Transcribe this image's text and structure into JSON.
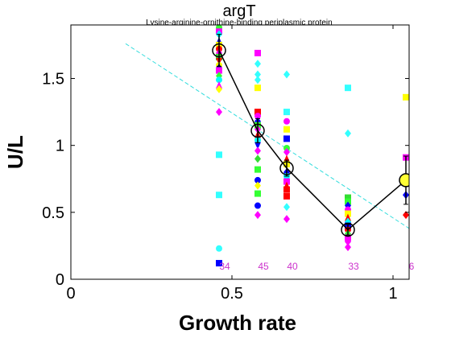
{
  "chart_data": {
    "type": "scatter",
    "title": "argT",
    "subtitle": "Lysine-arginine-ornithine-binding periplasmic protein",
    "xlabel": "Growth rate",
    "ylabel": "U/L",
    "xlim": [
      0,
      1.05
    ],
    "ylim": [
      0,
      1.9
    ],
    "xticks": [
      0,
      0.5,
      1
    ],
    "xtick_labels": [
      "0",
      "0.5",
      "1"
    ],
    "yticks": [
      0,
      0.5,
      1,
      1.5
    ],
    "ytick_labels": [
      "0",
      "0.5",
      "1",
      "1.5"
    ],
    "grid": false,
    "legend": "none",
    "counts": [
      {
        "x": 0.46,
        "label": "34"
      },
      {
        "x": 0.58,
        "label": "45"
      },
      {
        "x": 0.67,
        "label": "40"
      },
      {
        "x": 0.86,
        "label": "33"
      },
      {
        "x": 1.04,
        "label": "6"
      }
    ],
    "mean_line": {
      "x": [
        0.46,
        0.58,
        0.67,
        0.86,
        1.04
      ],
      "y": [
        1.71,
        1.11,
        0.83,
        0.37,
        0.74
      ],
      "error": [
        0.12,
        0.09,
        0.06,
        0.04,
        0.18
      ],
      "last_marker_color": "#ffff33"
    },
    "trend_line": {
      "x": [
        0.17,
        1.05
      ],
      "y": [
        1.76,
        0.38
      ],
      "color": "#33dddd"
    },
    "points": [
      {
        "x": 0.46,
        "y": 1.88,
        "m": "o",
        "c": "#33ff33"
      },
      {
        "x": 0.46,
        "y": 1.85,
        "m": "s",
        "c": "#ff00ff"
      },
      {
        "x": 0.46,
        "y": 1.83,
        "m": "d",
        "c": "#00ffff"
      },
      {
        "x": 0.46,
        "y": 1.78,
        "m": "^",
        "c": "#0000ff"
      },
      {
        "x": 0.46,
        "y": 1.75,
        "m": "s",
        "c": "#ffff00"
      },
      {
        "x": 0.46,
        "y": 1.72,
        "m": "o",
        "c": "#ff0000"
      },
      {
        "x": 0.46,
        "y": 1.69,
        "m": "d",
        "c": "#ff00ff"
      },
      {
        "x": 0.46,
        "y": 1.66,
        "m": "s",
        "c": "#33dd33"
      },
      {
        "x": 0.46,
        "y": 1.63,
        "m": "v",
        "c": "#ff0000"
      },
      {
        "x": 0.46,
        "y": 1.6,
        "m": "o",
        "c": "#ffff00"
      },
      {
        "x": 0.46,
        "y": 1.58,
        "m": "d",
        "c": "#0000cc"
      },
      {
        "x": 0.46,
        "y": 1.56,
        "m": "s",
        "c": "#ff00ff"
      },
      {
        "x": 0.46,
        "y": 1.52,
        "m": "d",
        "c": "#33ff33"
      },
      {
        "x": 0.46,
        "y": 1.49,
        "m": "o",
        "c": "#00ffff"
      },
      {
        "x": 0.46,
        "y": 1.45,
        "m": "^",
        "c": "#ff00ff"
      },
      {
        "x": 0.46,
        "y": 1.42,
        "m": "d",
        "c": "#ffff00"
      },
      {
        "x": 0.46,
        "y": 1.25,
        "m": "d",
        "c": "#ff00ff"
      },
      {
        "x": 0.46,
        "y": 0.93,
        "m": "s",
        "c": "#33ffff"
      },
      {
        "x": 0.46,
        "y": 0.63,
        "m": "s",
        "c": "#33ffff"
      },
      {
        "x": 0.46,
        "y": 0.23,
        "m": "o",
        "c": "#33ffff"
      },
      {
        "x": 0.46,
        "y": 0.12,
        "m": "s",
        "c": "#0000ff"
      },
      {
        "x": 0.58,
        "y": 1.69,
        "m": "s",
        "c": "#ff00ff"
      },
      {
        "x": 0.58,
        "y": 1.61,
        "m": "d",
        "c": "#33ffff"
      },
      {
        "x": 0.58,
        "y": 1.53,
        "m": "d",
        "c": "#33ffff"
      },
      {
        "x": 0.58,
        "y": 1.49,
        "m": "d",
        "c": "#33ffff"
      },
      {
        "x": 0.58,
        "y": 1.43,
        "m": "s",
        "c": "#ffff00"
      },
      {
        "x": 0.58,
        "y": 1.25,
        "m": "s",
        "c": "#ff0000"
      },
      {
        "x": 0.58,
        "y": 1.22,
        "m": "o",
        "c": "#ff00ff"
      },
      {
        "x": 0.58,
        "y": 1.18,
        "m": "d",
        "c": "#0000ff"
      },
      {
        "x": 0.58,
        "y": 1.15,
        "m": "s",
        "c": "#33ff33"
      },
      {
        "x": 0.58,
        "y": 1.12,
        "m": "d",
        "c": "#ff00ff"
      },
      {
        "x": 0.58,
        "y": 1.08,
        "m": "^",
        "c": "#ff0000"
      },
      {
        "x": 0.58,
        "y": 1.04,
        "m": "o",
        "c": "#00ffff"
      },
      {
        "x": 0.58,
        "y": 1.0,
        "m": "v",
        "c": "#0000ff"
      },
      {
        "x": 0.58,
        "y": 0.96,
        "m": "d",
        "c": "#ff00ff"
      },
      {
        "x": 0.58,
        "y": 0.9,
        "m": "d",
        "c": "#33dd33"
      },
      {
        "x": 0.58,
        "y": 0.82,
        "m": "s",
        "c": "#33ff33"
      },
      {
        "x": 0.58,
        "y": 0.74,
        "m": "o",
        "c": "#0000ff"
      },
      {
        "x": 0.58,
        "y": 0.7,
        "m": "d",
        "c": "#ffff00"
      },
      {
        "x": 0.58,
        "y": 0.64,
        "m": "s",
        "c": "#33ff33"
      },
      {
        "x": 0.58,
        "y": 0.55,
        "m": "o",
        "c": "#0000ff"
      },
      {
        "x": 0.58,
        "y": 0.48,
        "m": "d",
        "c": "#ff00ff"
      },
      {
        "x": 0.67,
        "y": 1.53,
        "m": "d",
        "c": "#33ffff"
      },
      {
        "x": 0.67,
        "y": 1.25,
        "m": "s",
        "c": "#33ffff"
      },
      {
        "x": 0.67,
        "y": 1.18,
        "m": "o",
        "c": "#ff00ff"
      },
      {
        "x": 0.67,
        "y": 1.12,
        "m": "s",
        "c": "#ffff00"
      },
      {
        "x": 0.67,
        "y": 1.05,
        "m": "s",
        "c": "#0000ff"
      },
      {
        "x": 0.67,
        "y": 0.98,
        "m": "o",
        "c": "#33ff33"
      },
      {
        "x": 0.67,
        "y": 0.95,
        "m": "d",
        "c": "#ff00ff"
      },
      {
        "x": 0.67,
        "y": 0.9,
        "m": "^",
        "c": "#ff0000"
      },
      {
        "x": 0.67,
        "y": 0.86,
        "m": "s",
        "c": "#ffff00"
      },
      {
        "x": 0.67,
        "y": 0.8,
        "m": "d",
        "c": "#0000ff"
      },
      {
        "x": 0.67,
        "y": 0.77,
        "m": "o",
        "c": "#00ffff"
      },
      {
        "x": 0.67,
        "y": 0.73,
        "m": "s",
        "c": "#ff00ff"
      },
      {
        "x": 0.67,
        "y": 0.7,
        "m": "^",
        "c": "#ff0000"
      },
      {
        "x": 0.67,
        "y": 0.67,
        "m": "s",
        "c": "#ff0000"
      },
      {
        "x": 0.67,
        "y": 0.62,
        "m": "s",
        "c": "#ff0000"
      },
      {
        "x": 0.67,
        "y": 0.54,
        "m": "d",
        "c": "#33ffff"
      },
      {
        "x": 0.67,
        "y": 0.45,
        "m": "d",
        "c": "#ff00ff"
      },
      {
        "x": 0.86,
        "y": 1.43,
        "m": "s",
        "c": "#33ffff"
      },
      {
        "x": 0.86,
        "y": 1.09,
        "m": "d",
        "c": "#33ffff"
      },
      {
        "x": 0.86,
        "y": 0.61,
        "m": "s",
        "c": "#33dd33"
      },
      {
        "x": 0.86,
        "y": 0.58,
        "m": "s",
        "c": "#33ff33"
      },
      {
        "x": 0.86,
        "y": 0.55,
        "m": "d",
        "c": "#0000ff"
      },
      {
        "x": 0.86,
        "y": 0.52,
        "m": "o",
        "c": "#ff00ff"
      },
      {
        "x": 0.86,
        "y": 0.49,
        "m": "s",
        "c": "#ffff00"
      },
      {
        "x": 0.86,
        "y": 0.46,
        "m": "^",
        "c": "#ff0000"
      },
      {
        "x": 0.86,
        "y": 0.43,
        "m": "d",
        "c": "#00ffff"
      },
      {
        "x": 0.86,
        "y": 0.4,
        "m": "s",
        "c": "#0000ff"
      },
      {
        "x": 0.86,
        "y": 0.37,
        "m": "o",
        "c": "#ff0000"
      },
      {
        "x": 0.86,
        "y": 0.34,
        "m": "d",
        "c": "#33ff33"
      },
      {
        "x": 0.86,
        "y": 0.31,
        "m": "s",
        "c": "#ff00ff"
      },
      {
        "x": 0.86,
        "y": 0.28,
        "m": "d",
        "c": "#ff00ff"
      },
      {
        "x": 0.86,
        "y": 0.24,
        "m": "d",
        "c": "#ff00ff"
      },
      {
        "x": 1.04,
        "y": 1.36,
        "m": "s",
        "c": "#ffff00"
      },
      {
        "x": 1.04,
        "y": 0.91,
        "m": "s",
        "c": "#ff00ff"
      },
      {
        "x": 1.04,
        "y": 0.63,
        "m": "d",
        "c": "#0000ff"
      },
      {
        "x": 1.04,
        "y": 0.48,
        "m": "d",
        "c": "#ff0000"
      }
    ]
  }
}
